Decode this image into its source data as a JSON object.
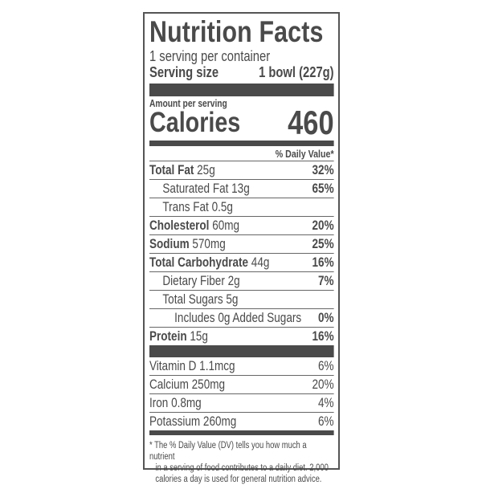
{
  "title": "Nutrition Facts",
  "servings_per_container": "1 serving per container",
  "serving_size": {
    "label": "Serving size",
    "value": "1 bowl (227g)"
  },
  "amount_per_serving": "Amount per serving",
  "calories": {
    "label": "Calories",
    "value": "460"
  },
  "daily_value_header": "% Daily Value*",
  "nutrients": [
    {
      "name": "Total Fat",
      "amount": "25g",
      "dv": "32%"
    },
    {
      "name": "Saturated Fat",
      "amount": "13g",
      "dv": "65%"
    },
    {
      "name": "Trans Fat",
      "amount": "0.5g",
      "dv": ""
    },
    {
      "name": "Cholesterol",
      "amount": "60mg",
      "dv": "20%"
    },
    {
      "name": "Sodium",
      "amount": "570mg",
      "dv": "25%"
    },
    {
      "name": "Total Carbohydrate",
      "amount": "44g",
      "dv": "16%"
    },
    {
      "name": "Dietary Fiber",
      "amount": "2g",
      "dv": "7%"
    },
    {
      "name": "Total Sugars",
      "amount": "5g",
      "dv": ""
    },
    {
      "name": "Includes 0g Added Sugars",
      "amount": "",
      "dv": "0%"
    },
    {
      "name": "Protein",
      "amount": "15g",
      "dv": "16%"
    }
  ],
  "vitamins": [
    {
      "name": "Vitamin D",
      "amount": "1.1mcg",
      "dv": "6%"
    },
    {
      "name": "Calcium",
      "amount": "250mg",
      "dv": "20%"
    },
    {
      "name": "Iron",
      "amount": "0.8mg",
      "dv": "4%"
    },
    {
      "name": "Potassium",
      "amount": "260mg",
      "dv": "6%"
    }
  ],
  "footnote": [
    "* The % Daily Value (DV) tells you how much a nutrient",
    "in a serving of food contributes to a daily diet. 2,000",
    "calories a day is used for general nutrition advice."
  ],
  "colors": {
    "ink": "#4a4a4a",
    "background": "#ffffff"
  }
}
